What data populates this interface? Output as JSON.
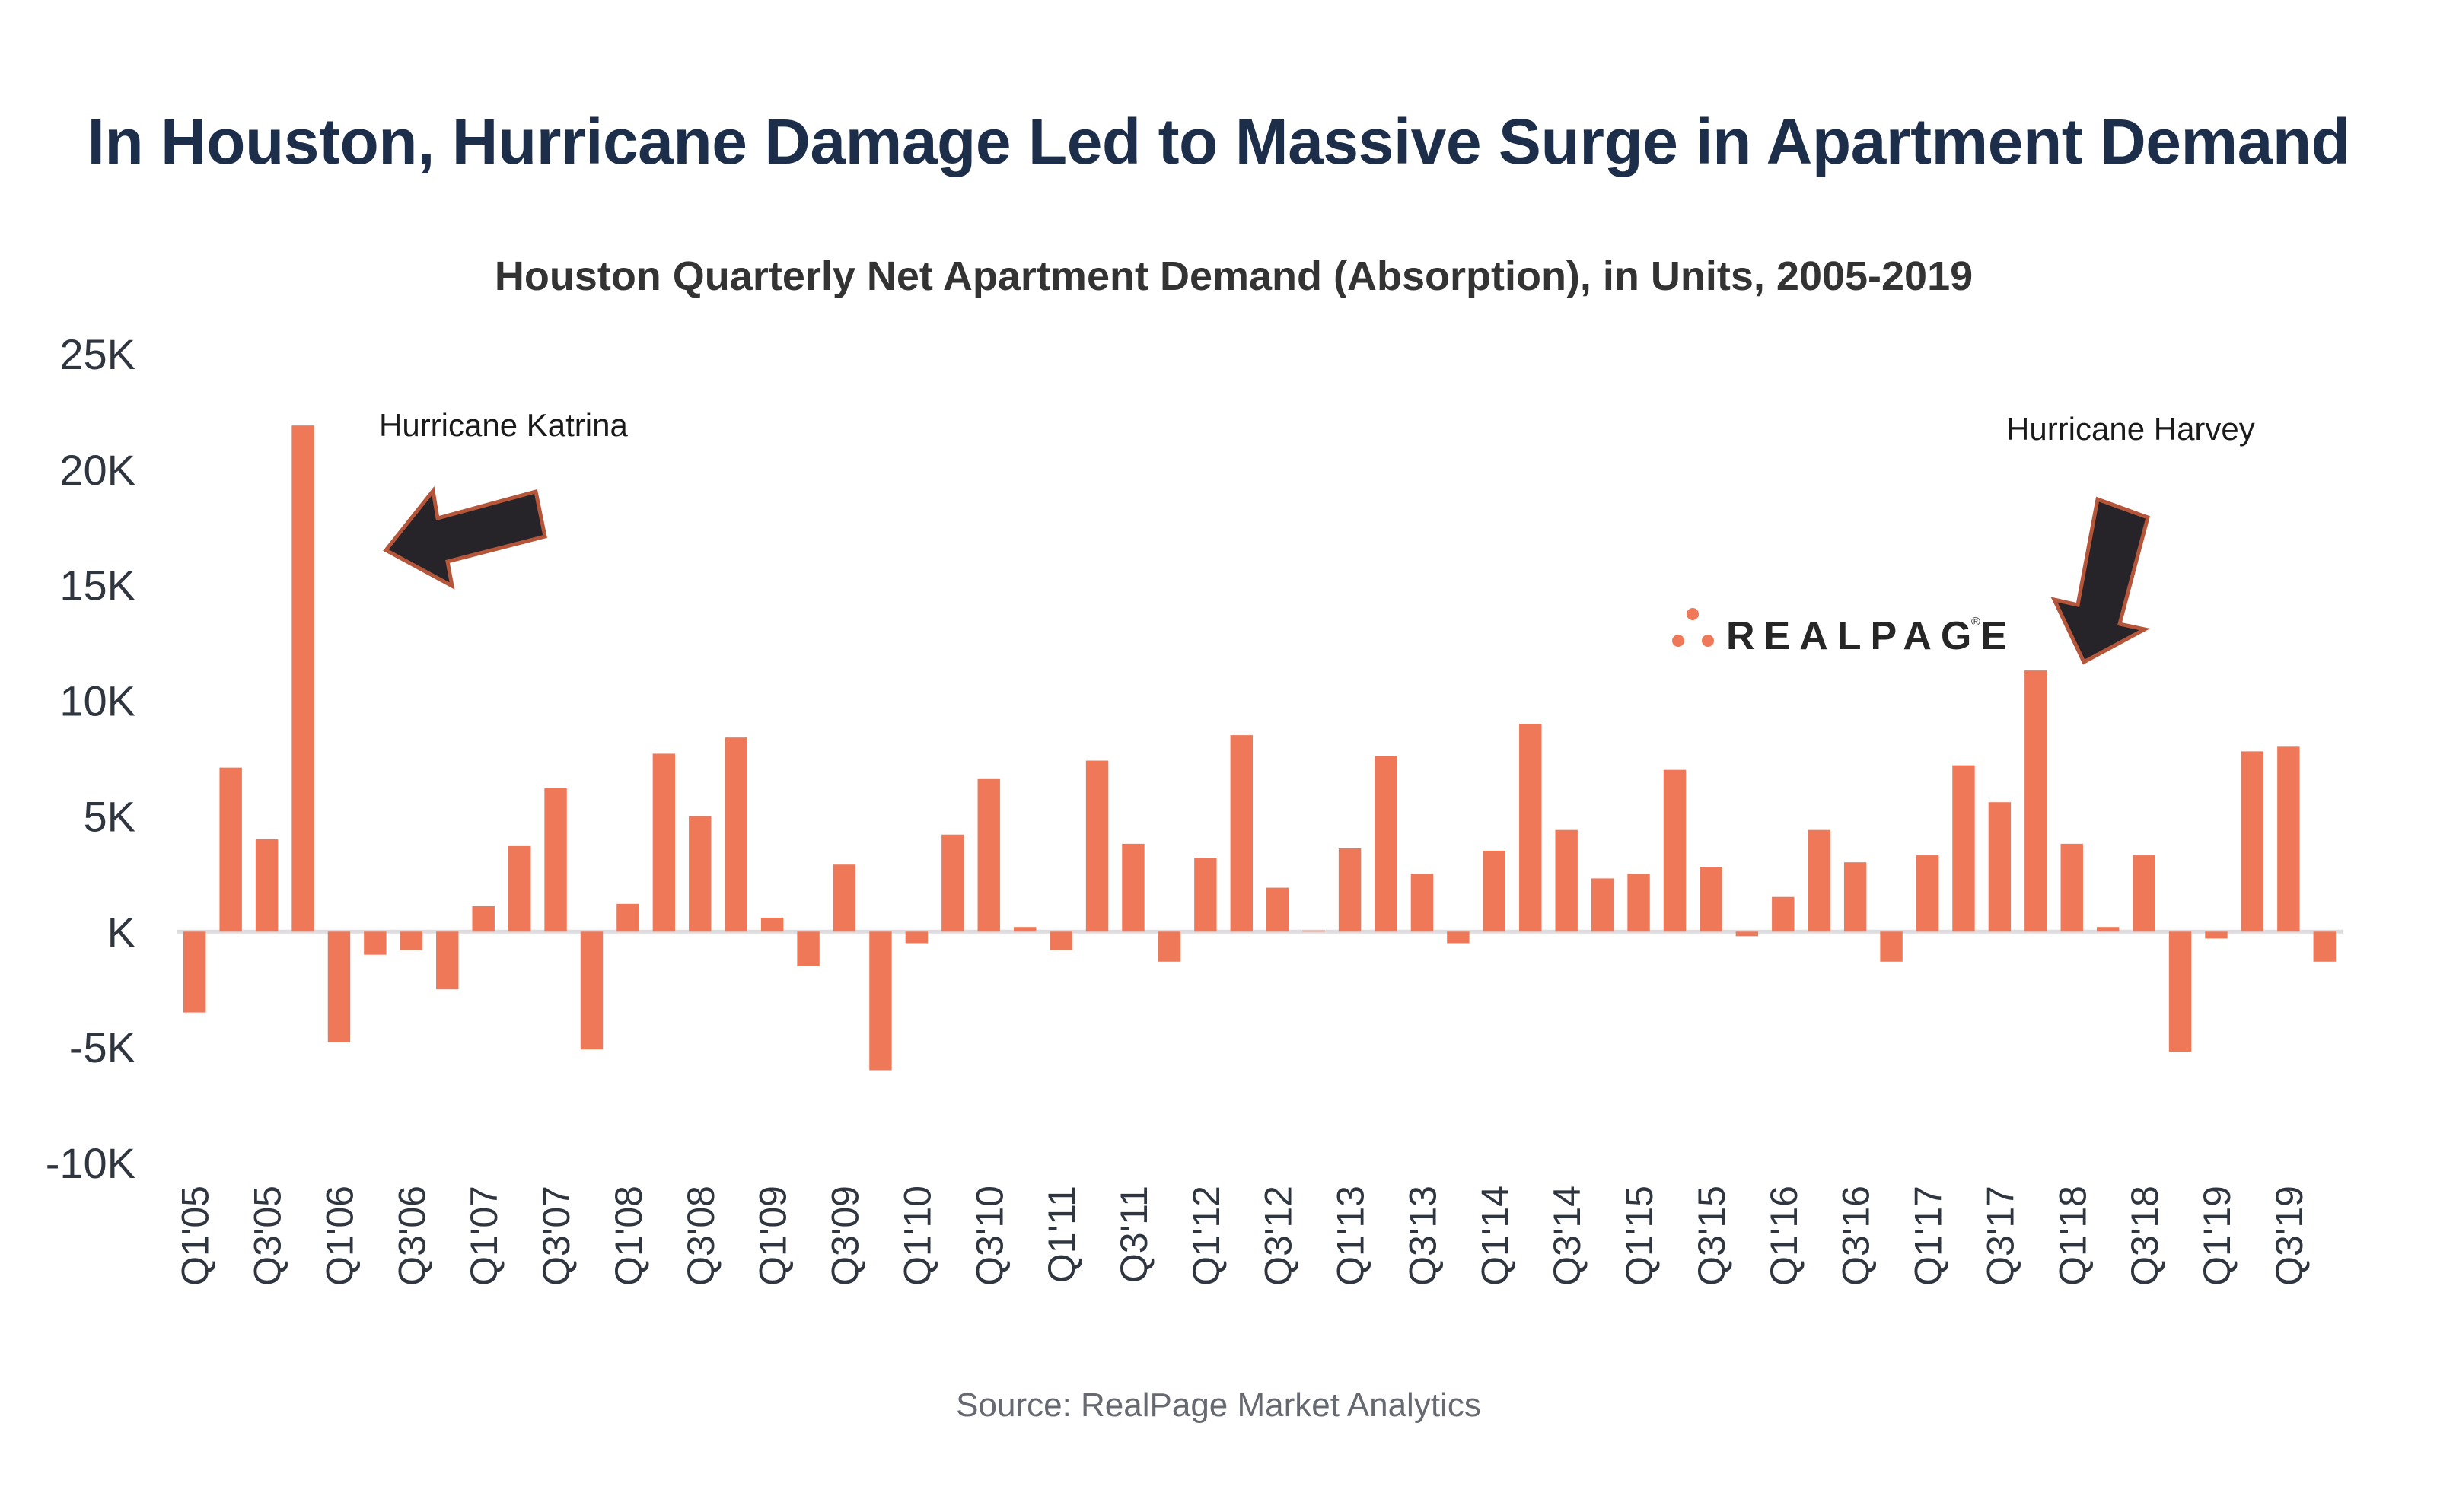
{
  "header": {
    "title": "In Houston, Hurricane Damage Led to Massive Surge in Apartment Demand"
  },
  "footer": {
    "source": "Source: RealPage Market Analytics"
  },
  "logo": {
    "text": "REALPAGE",
    "registered_mark": "®",
    "dot_color": "#ee7857"
  },
  "colors": {
    "bar": "#ee7857",
    "title": "#1c2e4a",
    "zero_line": "#dedcdf",
    "arrow_fill": "#262428",
    "arrow_stroke": "#b5553a"
  },
  "chart_data": {
    "type": "bar",
    "title": "Houston Quarterly Net Apartment Demand (Absorption), in Units, 2005-2019",
    "xlabel": "",
    "ylabel": "",
    "ylim": [
      -10000,
      25000
    ],
    "yticks": [
      25000,
      20000,
      15000,
      10000,
      5000,
      0,
      -5000,
      -10000
    ],
    "ytick_labels": [
      "25K",
      "20K",
      "15K",
      "10K",
      "5K",
      "K",
      "-5K",
      "-10K"
    ],
    "grid": false,
    "legend": "none",
    "categories": [
      "Q1'05",
      "Q2'05",
      "Q3'05",
      "Q4'05",
      "Q1'06",
      "Q2'06",
      "Q3'06",
      "Q4'06",
      "Q1'07",
      "Q2'07",
      "Q3'07",
      "Q4'07",
      "Q1'08",
      "Q2'08",
      "Q3'08",
      "Q4'08",
      "Q1'09",
      "Q2'09",
      "Q3'09",
      "Q4'09",
      "Q1'10",
      "Q2'10",
      "Q3'10",
      "Q4'10",
      "Q1'11",
      "Q2'11",
      "Q3'11",
      "Q4'11",
      "Q1'12",
      "Q2'12",
      "Q3'12",
      "Q4'12",
      "Q1'13",
      "Q2'13",
      "Q3'13",
      "Q4'13",
      "Q1'14",
      "Q2'14",
      "Q3'14",
      "Q4'14",
      "Q1'15",
      "Q2'15",
      "Q3'15",
      "Q4'15",
      "Q1'16",
      "Q2'16",
      "Q3'16",
      "Q4'16",
      "Q1'17",
      "Q2'17",
      "Q3'17",
      "Q4'17",
      "Q1'18",
      "Q2'18",
      "Q3'18",
      "Q4'18",
      "Q1'19",
      "Q2'19",
      "Q3'19",
      "Q4'19"
    ],
    "visible_tick_labels": [
      "Q1'05",
      "Q3'05",
      "Q1'06",
      "Q3'06",
      "Q1'07",
      "Q3'07",
      "Q1'08",
      "Q3'08",
      "Q1'09",
      "Q3'09",
      "Q1'10",
      "Q3'10",
      "Q1'11",
      "Q3'11",
      "Q1'12",
      "Q3'12",
      "Q1'13",
      "Q3'13",
      "Q1'14",
      "Q3'14",
      "Q1'15",
      "Q3'15",
      "Q1'16",
      "Q3'16",
      "Q1'17",
      "Q3'17",
      "Q1'18",
      "Q3'18",
      "Q1'19",
      "Q3'19"
    ],
    "values": [
      -3500,
      7100,
      4000,
      21900,
      -4800,
      -1000,
      -800,
      -2500,
      1100,
      3700,
      6200,
      -5100,
      1200,
      7700,
      5000,
      8400,
      600,
      -1500,
      2900,
      -6000,
      -500,
      4200,
      6600,
      200,
      -800,
      7400,
      3800,
      -1300,
      3200,
      8500,
      1900,
      50,
      3600,
      7600,
      2500,
      -500,
      3500,
      9000,
      4400,
      2300,
      2500,
      7000,
      2800,
      -200,
      1500,
      4400,
      3000,
      -1300,
      3300,
      7200,
      5600,
      11300,
      3800,
      200,
      3300,
      -5200,
      -300,
      7800,
      8000,
      -1300
    ],
    "annotations": [
      {
        "text": "Hurricane Katrina",
        "points_to": "Q4'05"
      },
      {
        "text": "Hurricane Harvey",
        "points_to": "Q4'17"
      }
    ]
  }
}
